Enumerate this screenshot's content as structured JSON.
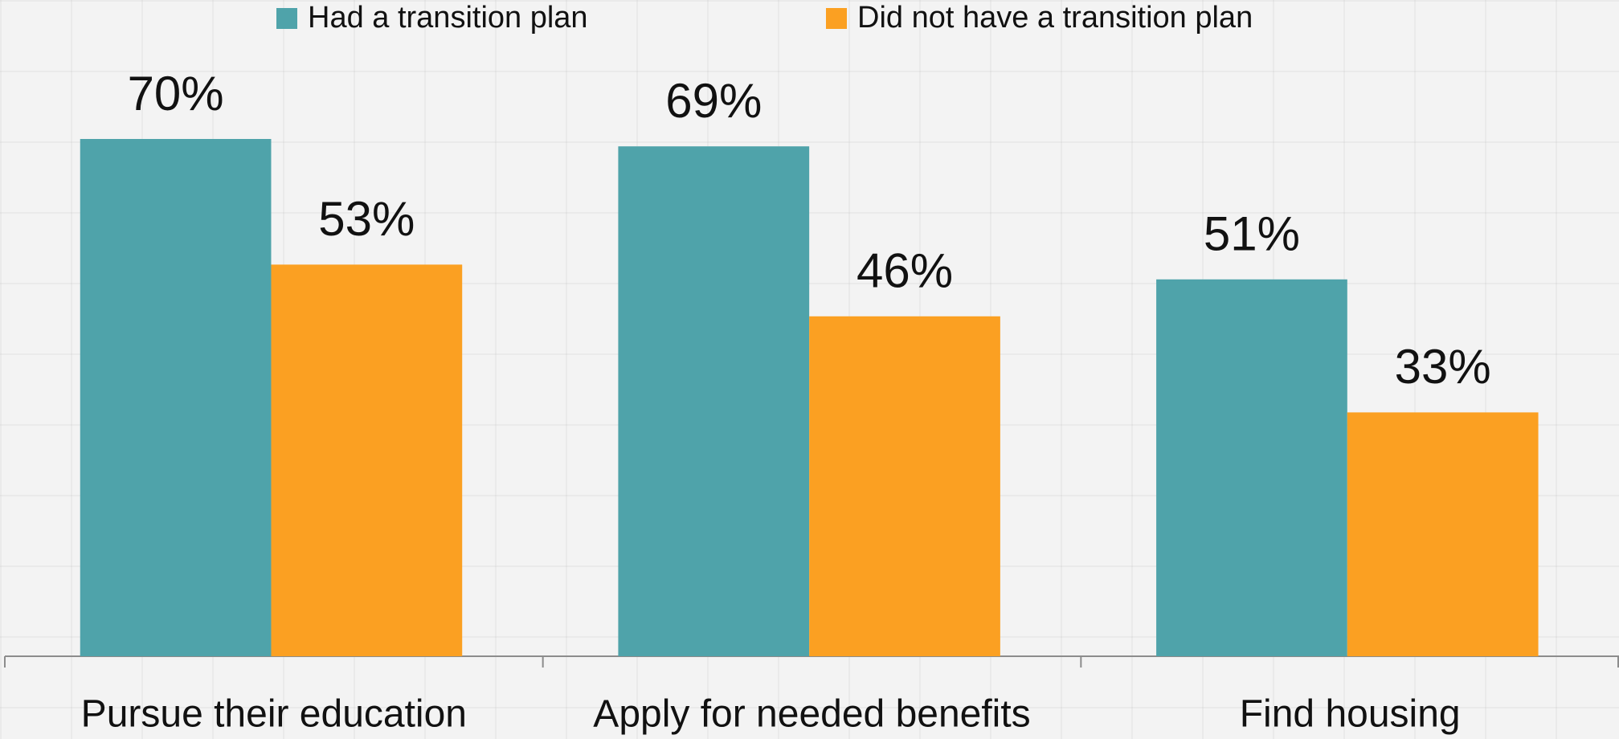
{
  "chart_data": {
    "type": "bar",
    "categories": [
      "Pursue their education",
      "Apply for needed benefits",
      "Find housing"
    ],
    "series": [
      {
        "name": "Had a transition plan",
        "color": "#4fa3aa",
        "values": [
          70,
          69,
          51
        ],
        "value_labels": [
          "70%",
          "69%",
          "51%"
        ]
      },
      {
        "name": "Did not have a transition plan",
        "color": "#fba022",
        "values": [
          53,
          46,
          33
        ],
        "value_labels": [
          "53%",
          "46%",
          "33%"
        ]
      }
    ],
    "ylim": [
      0,
      80
    ],
    "legend": "top"
  }
}
